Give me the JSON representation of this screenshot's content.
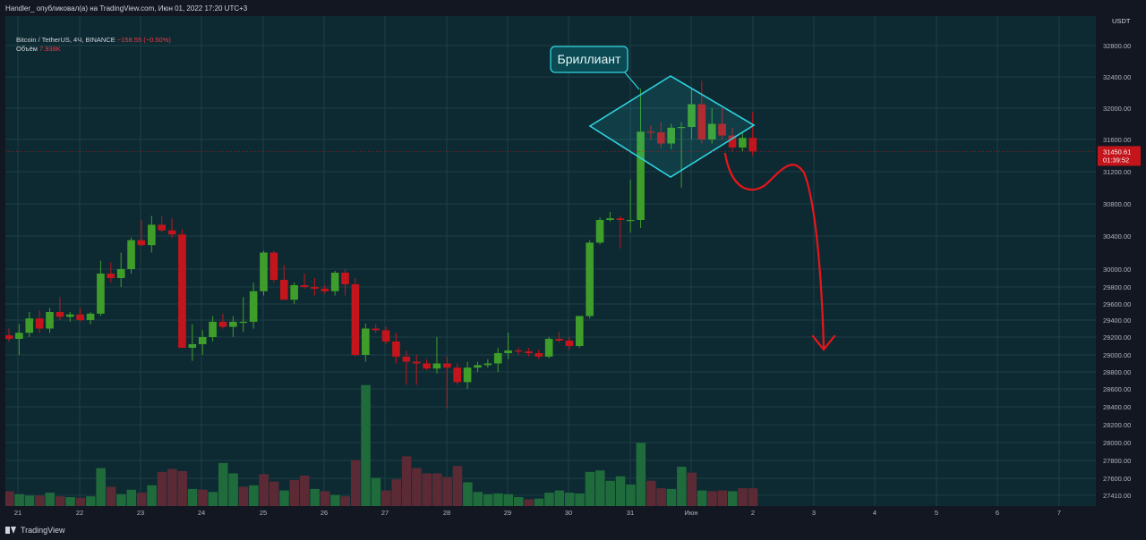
{
  "header": {
    "published": "Handler_ опубликовал(а) на TradingView.com, Июн 01, 2022 17:20 UTC+3"
  },
  "legend": {
    "symbol": "Bitcoin / TetherUS, 4Ч, BINANCE",
    "change": "−158.55 (−0.50%)",
    "volume_label": "Объём",
    "volume_value": "7.938K"
  },
  "footer": {
    "brand": "TradingView"
  },
  "colors": {
    "background": "#0d2a32",
    "up": "#3f9e2a",
    "down": "#c3151b",
    "up_volume": "#1f6b3c",
    "down_volume": "#5c2a35",
    "pattern": "#2fd3e0",
    "arrow": "#e8151b",
    "price_label": "#c3151b"
  },
  "chart_data": {
    "type": "candlestick",
    "currency": "USDT",
    "ylim": [
      27410,
      33100
    ],
    "y_ticks": [
      27410,
      27600,
      27800,
      28000,
      28200,
      28400,
      28600,
      28800,
      29000,
      29200,
      29400,
      29600,
      29800,
      30000,
      30400,
      30800,
      31200,
      31600,
      32000,
      32400,
      32800
    ],
    "x_ticks": [
      "21",
      "22",
      "23",
      "24",
      "25",
      "26",
      "27",
      "28",
      "29",
      "30",
      "31",
      "Июн",
      "2",
      "3",
      "4",
      "5",
      "6",
      "7"
    ],
    "last_price": "31450.61",
    "countdown": "01:39:52",
    "pattern_label": "Бриллиант",
    "candles": [
      {
        "o": 29220,
        "h": 29300,
        "l": 29150,
        "c": 29180
      },
      {
        "o": 29180,
        "h": 29350,
        "l": 29000,
        "c": 29250
      },
      {
        "o": 29250,
        "h": 29500,
        "l": 29200,
        "c": 29420
      },
      {
        "o": 29420,
        "h": 29520,
        "l": 29250,
        "c": 29300
      },
      {
        "o": 29300,
        "h": 29550,
        "l": 29250,
        "c": 29500
      },
      {
        "o": 29500,
        "h": 29680,
        "l": 29400,
        "c": 29440
      },
      {
        "o": 29440,
        "h": 29500,
        "l": 29380,
        "c": 29470
      },
      {
        "o": 29470,
        "h": 29550,
        "l": 29380,
        "c": 29400
      },
      {
        "o": 29400,
        "h": 29500,
        "l": 29350,
        "c": 29480
      },
      {
        "o": 29480,
        "h": 30100,
        "l": 29450,
        "c": 29950
      },
      {
        "o": 29950,
        "h": 30080,
        "l": 29850,
        "c": 29900
      },
      {
        "o": 29900,
        "h": 30200,
        "l": 29800,
        "c": 30000
      },
      {
        "o": 30000,
        "h": 30380,
        "l": 29950,
        "c": 30350
      },
      {
        "o": 30350,
        "h": 30600,
        "l": 30280,
        "c": 30290
      },
      {
        "o": 30290,
        "h": 30650,
        "l": 30200,
        "c": 30540
      },
      {
        "o": 30540,
        "h": 30650,
        "l": 30450,
        "c": 30470
      },
      {
        "o": 30470,
        "h": 30620,
        "l": 30380,
        "c": 30420
      },
      {
        "o": 30420,
        "h": 30480,
        "l": 29080,
        "c": 29080
      },
      {
        "o": 29080,
        "h": 29350,
        "l": 28930,
        "c": 29120
      },
      {
        "o": 29120,
        "h": 29280,
        "l": 29000,
        "c": 29200
      },
      {
        "o": 29200,
        "h": 29450,
        "l": 29150,
        "c": 29380
      },
      {
        "o": 29380,
        "h": 29480,
        "l": 29300,
        "c": 29320
      },
      {
        "o": 29320,
        "h": 29450,
        "l": 29200,
        "c": 29380
      },
      {
        "o": 29380,
        "h": 29680,
        "l": 29260,
        "c": 29380
      },
      {
        "o": 29380,
        "h": 29850,
        "l": 29300,
        "c": 29750
      },
      {
        "o": 29750,
        "h": 30220,
        "l": 29700,
        "c": 30200
      },
      {
        "o": 30200,
        "h": 30220,
        "l": 29850,
        "c": 29880
      },
      {
        "o": 29880,
        "h": 30050,
        "l": 29700,
        "c": 29650
      },
      {
        "o": 29650,
        "h": 29850,
        "l": 29600,
        "c": 29820
      },
      {
        "o": 29820,
        "h": 29950,
        "l": 29780,
        "c": 29800
      },
      {
        "o": 29800,
        "h": 29900,
        "l": 29700,
        "c": 29780
      },
      {
        "o": 29780,
        "h": 29820,
        "l": 29720,
        "c": 29750
      },
      {
        "o": 29750,
        "h": 29980,
        "l": 29700,
        "c": 29960
      },
      {
        "o": 29960,
        "h": 30000,
        "l": 29700,
        "c": 29830
      },
      {
        "o": 29830,
        "h": 29900,
        "l": 28980,
        "c": 29000
      },
      {
        "o": 29000,
        "h": 29360,
        "l": 28920,
        "c": 29300
      },
      {
        "o": 29300,
        "h": 29350,
        "l": 29250,
        "c": 29280
      },
      {
        "o": 29280,
        "h": 29320,
        "l": 29120,
        "c": 29150
      },
      {
        "o": 29150,
        "h": 29250,
        "l": 28900,
        "c": 28980
      },
      {
        "o": 28980,
        "h": 29050,
        "l": 28650,
        "c": 28920
      },
      {
        "o": 28920,
        "h": 29000,
        "l": 28650,
        "c": 28900
      },
      {
        "o": 28900,
        "h": 28950,
        "l": 28820,
        "c": 28840
      },
      {
        "o": 28840,
        "h": 29200,
        "l": 28780,
        "c": 28900
      },
      {
        "o": 28900,
        "h": 28980,
        "l": 28380,
        "c": 28850
      },
      {
        "o": 28850,
        "h": 28900,
        "l": 28650,
        "c": 28680
      },
      {
        "o": 28680,
        "h": 28920,
        "l": 28600,
        "c": 28850
      },
      {
        "o": 28850,
        "h": 28920,
        "l": 28800,
        "c": 28880
      },
      {
        "o": 28880,
        "h": 28950,
        "l": 28850,
        "c": 28900
      },
      {
        "o": 28900,
        "h": 29080,
        "l": 28800,
        "c": 29020
      },
      {
        "o": 29020,
        "h": 29250,
        "l": 28950,
        "c": 29050
      },
      {
        "o": 29050,
        "h": 29080,
        "l": 29000,
        "c": 29040
      },
      {
        "o": 29040,
        "h": 29080,
        "l": 28980,
        "c": 29020
      },
      {
        "o": 29020,
        "h": 29060,
        "l": 28950,
        "c": 28980
      },
      {
        "o": 28980,
        "h": 29200,
        "l": 28960,
        "c": 29180
      },
      {
        "o": 29180,
        "h": 29260,
        "l": 29140,
        "c": 29160
      },
      {
        "o": 29160,
        "h": 29200,
        "l": 29060,
        "c": 29100
      },
      {
        "o": 29100,
        "h": 29450,
        "l": 29080,
        "c": 29450
      },
      {
        "o": 29450,
        "h": 30350,
        "l": 29420,
        "c": 30320
      },
      {
        "o": 30320,
        "h": 30630,
        "l": 30300,
        "c": 30600
      },
      {
        "o": 30600,
        "h": 30700,
        "l": 30580,
        "c": 30620
      },
      {
        "o": 30620,
        "h": 30650,
        "l": 30250,
        "c": 30600
      },
      {
        "o": 30600,
        "h": 31100,
        "l": 30440,
        "c": 30600
      },
      {
        "o": 30600,
        "h": 32250,
        "l": 30500,
        "c": 31700
      },
      {
        "o": 31700,
        "h": 31780,
        "l": 31600,
        "c": 31690
      },
      {
        "o": 31690,
        "h": 31820,
        "l": 31490,
        "c": 31550
      },
      {
        "o": 31550,
        "h": 31800,
        "l": 31480,
        "c": 31750
      },
      {
        "o": 31750,
        "h": 31820,
        "l": 31000,
        "c": 31760
      },
      {
        "o": 31760,
        "h": 32250,
        "l": 31600,
        "c": 32050
      },
      {
        "o": 32050,
        "h": 32350,
        "l": 31550,
        "c": 31600
      },
      {
        "o": 31600,
        "h": 32000,
        "l": 31550,
        "c": 31800
      },
      {
        "o": 31800,
        "h": 32000,
        "l": 31600,
        "c": 31650
      },
      {
        "o": 31650,
        "h": 31750,
        "l": 31450,
        "c": 31500
      },
      {
        "o": 31500,
        "h": 31700,
        "l": 31450,
        "c": 31620
      },
      {
        "o": 31620,
        "h": 31950,
        "l": 31400,
        "c": 31450
      }
    ],
    "volumes": [
      {
        "v": 2.0,
        "up": false
      },
      {
        "v": 1.6,
        "up": true
      },
      {
        "v": 1.4,
        "up": true
      },
      {
        "v": 1.4,
        "up": false
      },
      {
        "v": 1.8,
        "up": true
      },
      {
        "v": 1.3,
        "up": false
      },
      {
        "v": 1.2,
        "up": true
      },
      {
        "v": 1.1,
        "up": false
      },
      {
        "v": 1.3,
        "up": true
      },
      {
        "v": 5.1,
        "up": true
      },
      {
        "v": 2.6,
        "up": false
      },
      {
        "v": 1.6,
        "up": true
      },
      {
        "v": 2.2,
        "up": true
      },
      {
        "v": 1.8,
        "up": false
      },
      {
        "v": 2.8,
        "up": true
      },
      {
        "v": 4.6,
        "up": false
      },
      {
        "v": 5.0,
        "up": false
      },
      {
        "v": 4.7,
        "up": false
      },
      {
        "v": 2.3,
        "up": true
      },
      {
        "v": 2.2,
        "up": false
      },
      {
        "v": 1.9,
        "up": true
      },
      {
        "v": 5.8,
        "up": true
      },
      {
        "v": 4.4,
        "up": true
      },
      {
        "v": 2.6,
        "up": false
      },
      {
        "v": 2.8,
        "up": true
      },
      {
        "v": 4.3,
        "up": false
      },
      {
        "v": 3.3,
        "up": false
      },
      {
        "v": 2.1,
        "up": true
      },
      {
        "v": 3.5,
        "up": false
      },
      {
        "v": 4.1,
        "up": false
      },
      {
        "v": 2.3,
        "up": true
      },
      {
        "v": 2.0,
        "up": false
      },
      {
        "v": 1.5,
        "up": true
      },
      {
        "v": 1.3,
        "up": false
      },
      {
        "v": 6.2,
        "up": false
      },
      {
        "v": 16.3,
        "up": true
      },
      {
        "v": 3.8,
        "up": true
      },
      {
        "v": 2.1,
        "up": false
      },
      {
        "v": 3.6,
        "up": false
      },
      {
        "v": 6.7,
        "up": false
      },
      {
        "v": 5.1,
        "up": false
      },
      {
        "v": 4.4,
        "up": false
      },
      {
        "v": 4.4,
        "up": false
      },
      {
        "v": 3.9,
        "up": false
      },
      {
        "v": 5.4,
        "up": false
      },
      {
        "v": 3.2,
        "up": true
      },
      {
        "v": 1.9,
        "up": true
      },
      {
        "v": 1.6,
        "up": true
      },
      {
        "v": 1.7,
        "up": true
      },
      {
        "v": 1.6,
        "up": true
      },
      {
        "v": 1.2,
        "up": true
      },
      {
        "v": 0.9,
        "up": false
      },
      {
        "v": 1.0,
        "up": true
      },
      {
        "v": 1.8,
        "up": true
      },
      {
        "v": 2.1,
        "up": true
      },
      {
        "v": 1.8,
        "up": true
      },
      {
        "v": 1.7,
        "up": true
      },
      {
        "v": 4.6,
        "up": true
      },
      {
        "v": 4.8,
        "up": true
      },
      {
        "v": 3.4,
        "up": true
      },
      {
        "v": 4.0,
        "up": true
      },
      {
        "v": 2.9,
        "up": true
      },
      {
        "v": 8.5,
        "up": true
      },
      {
        "v": 3.4,
        "up": false
      },
      {
        "v": 2.4,
        "up": false
      },
      {
        "v": 2.3,
        "up": true
      },
      {
        "v": 5.3,
        "up": true
      },
      {
        "v": 4.5,
        "up": false
      },
      {
        "v": 2.1,
        "up": true
      },
      {
        "v": 2.0,
        "up": false
      },
      {
        "v": 2.1,
        "up": false
      },
      {
        "v": 2.0,
        "up": true
      },
      {
        "v": 2.4,
        "up": false
      },
      {
        "v": 2.4,
        "up": false
      }
    ]
  }
}
